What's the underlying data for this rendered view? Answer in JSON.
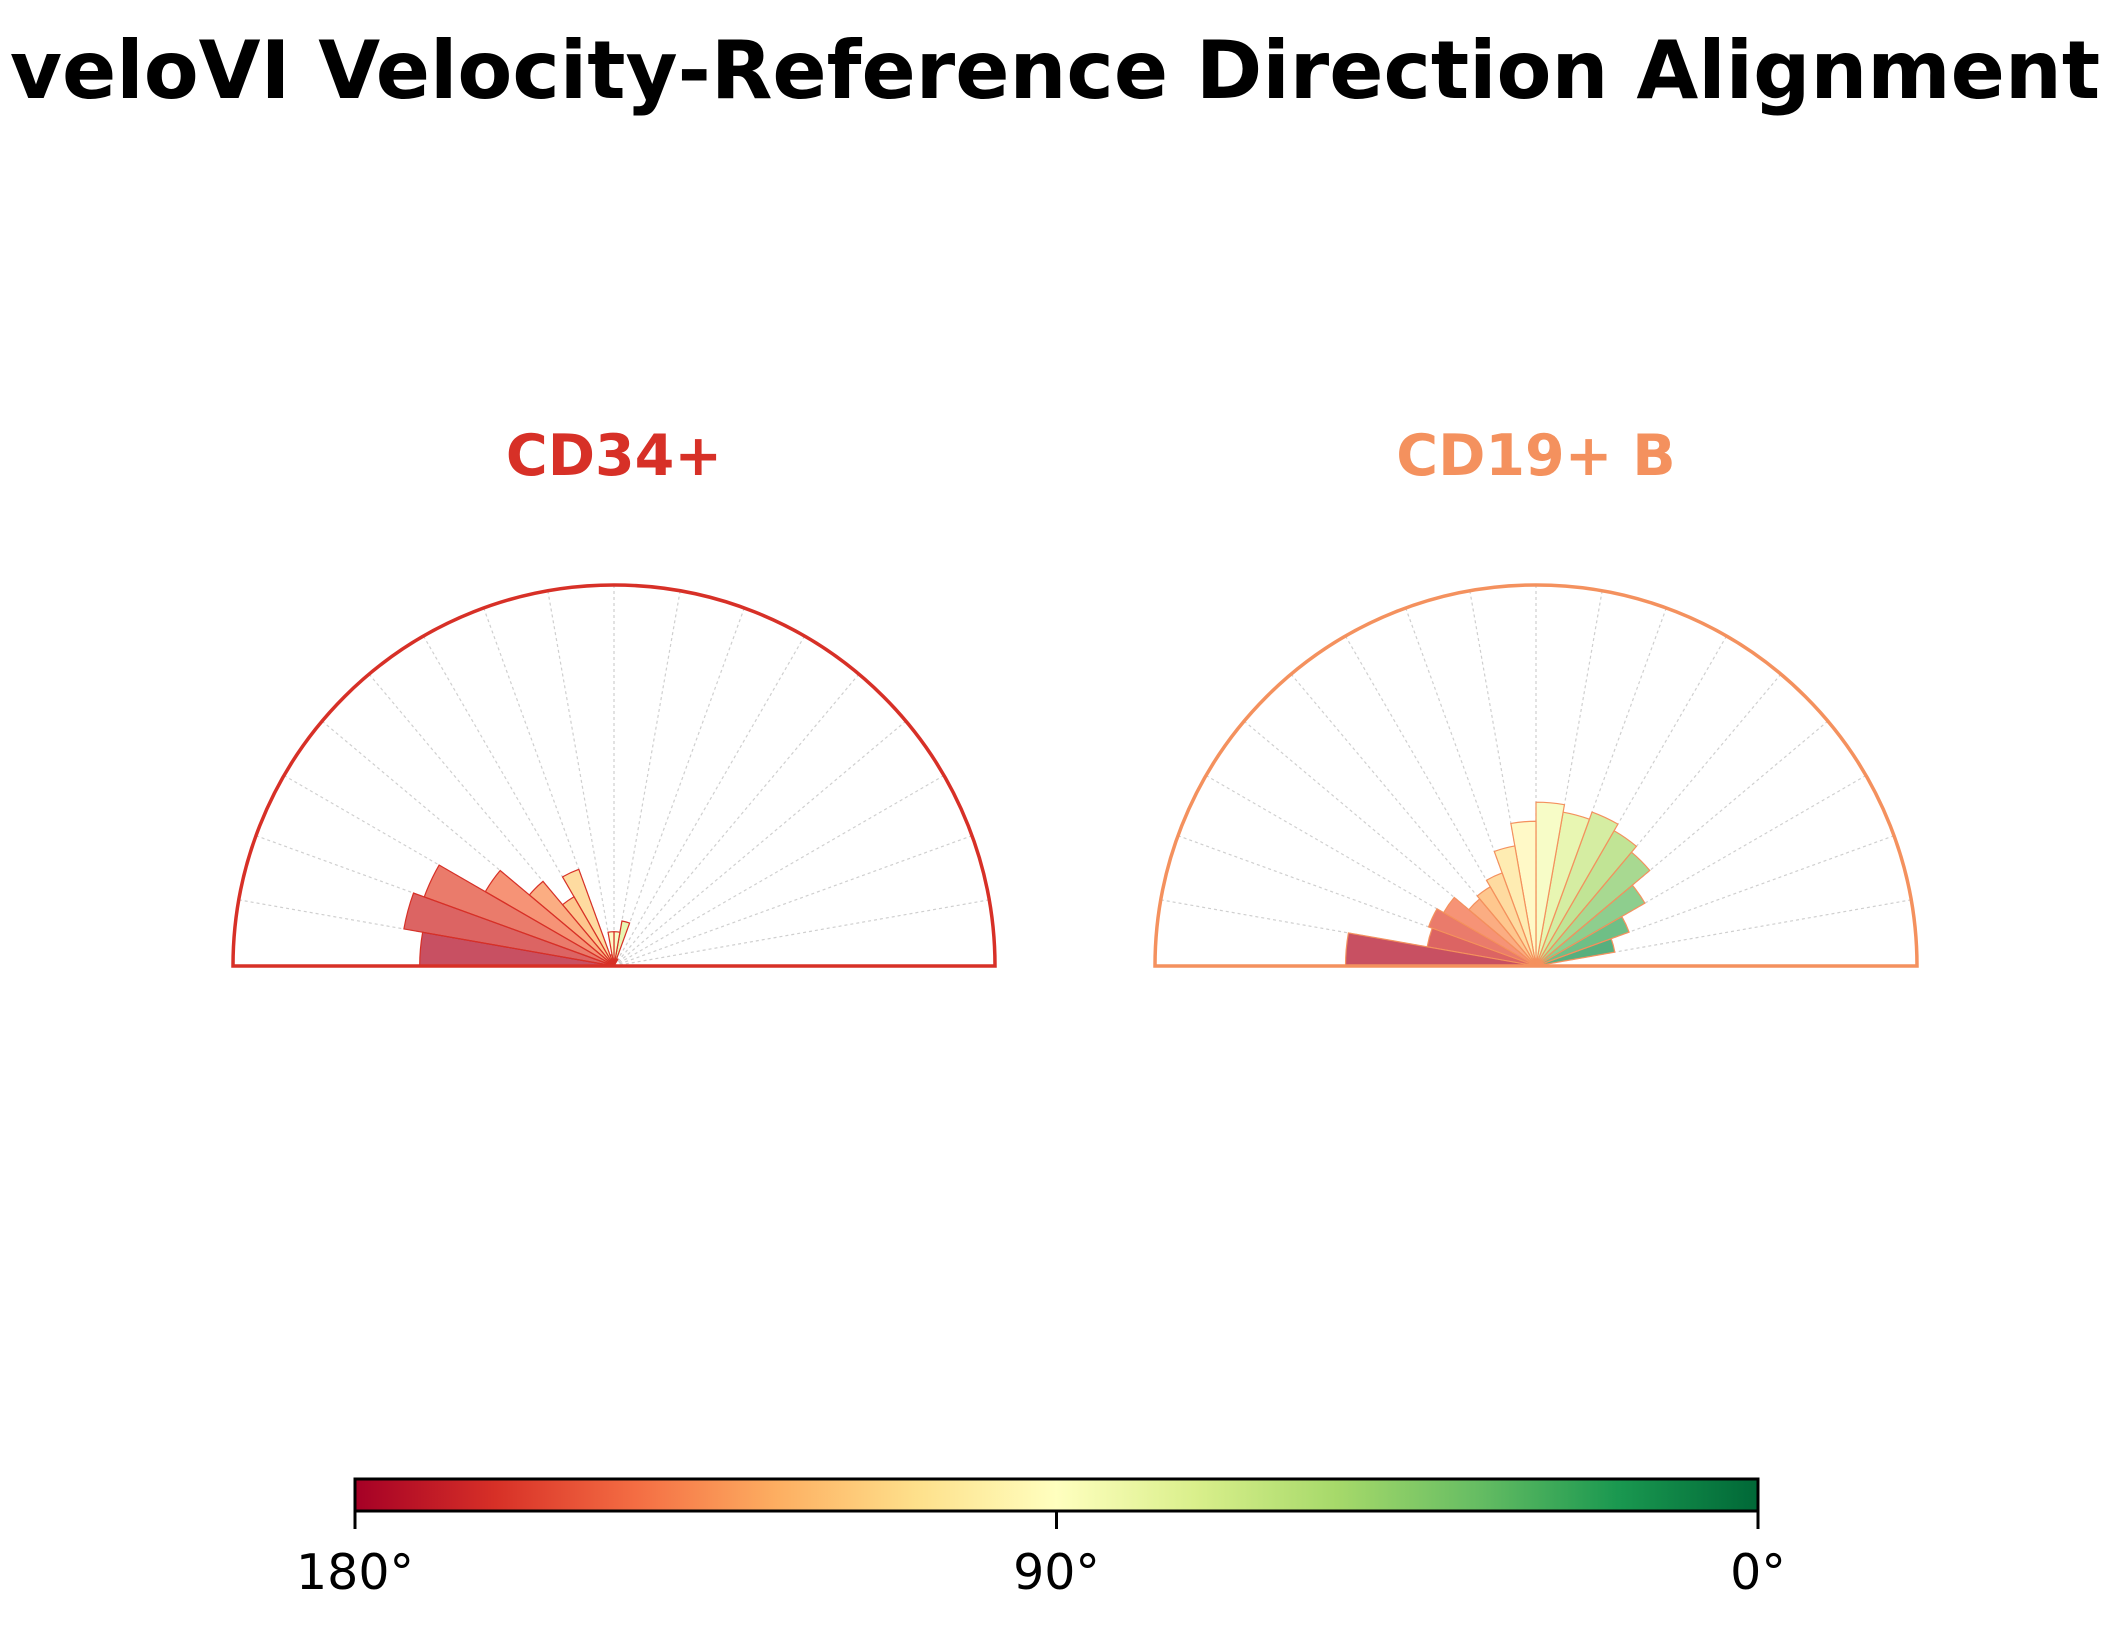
{
  "chart_data": {
    "type": "polar-bar",
    "title": "veloVI Velocity-Reference Direction Alignment",
    "angle_range_deg": [
      0,
      180
    ],
    "bin_width_deg": 10,
    "bin_centers_deg": [
      5,
      15,
      25,
      35,
      45,
      55,
      65,
      75,
      85,
      95,
      105,
      115,
      125,
      135,
      145,
      155,
      165,
      175
    ],
    "radial_max": 1.0,
    "grid": true,
    "panels": [
      {
        "name": "CD34+",
        "title_color": "#d73027",
        "outline_color": "#d73027",
        "values": [
          0,
          0,
          0,
          0,
          0,
          0,
          0.02,
          0.12,
          0.09,
          0.09,
          0.03,
          0.27,
          0.21,
          0.29,
          0.39,
          0.53,
          0.56,
          0.51
        ]
      },
      {
        "name": "CD19+ B",
        "title_color": "#f4915e",
        "outline_color": "#f4915e",
        "values": [
          0,
          0.21,
          0.26,
          0.33,
          0.39,
          0.41,
          0.43,
          0.41,
          0.43,
          0.38,
          0.32,
          0.26,
          0.24,
          0.23,
          0.28,
          0.3,
          0.29,
          0.5
        ]
      }
    ],
    "colorbar": {
      "colormap": "RdYlGn",
      "colors": [
        "#a50026",
        "#d73027",
        "#f46d43",
        "#fdae61",
        "#fee08b",
        "#ffffbf",
        "#d9ef8b",
        "#a6d96a",
        "#66bd63",
        "#1a9850",
        "#006837"
      ],
      "tick_labels": [
        "180°",
        "90°",
        "0°"
      ],
      "tick_values": [
        180,
        90,
        0
      ]
    }
  }
}
